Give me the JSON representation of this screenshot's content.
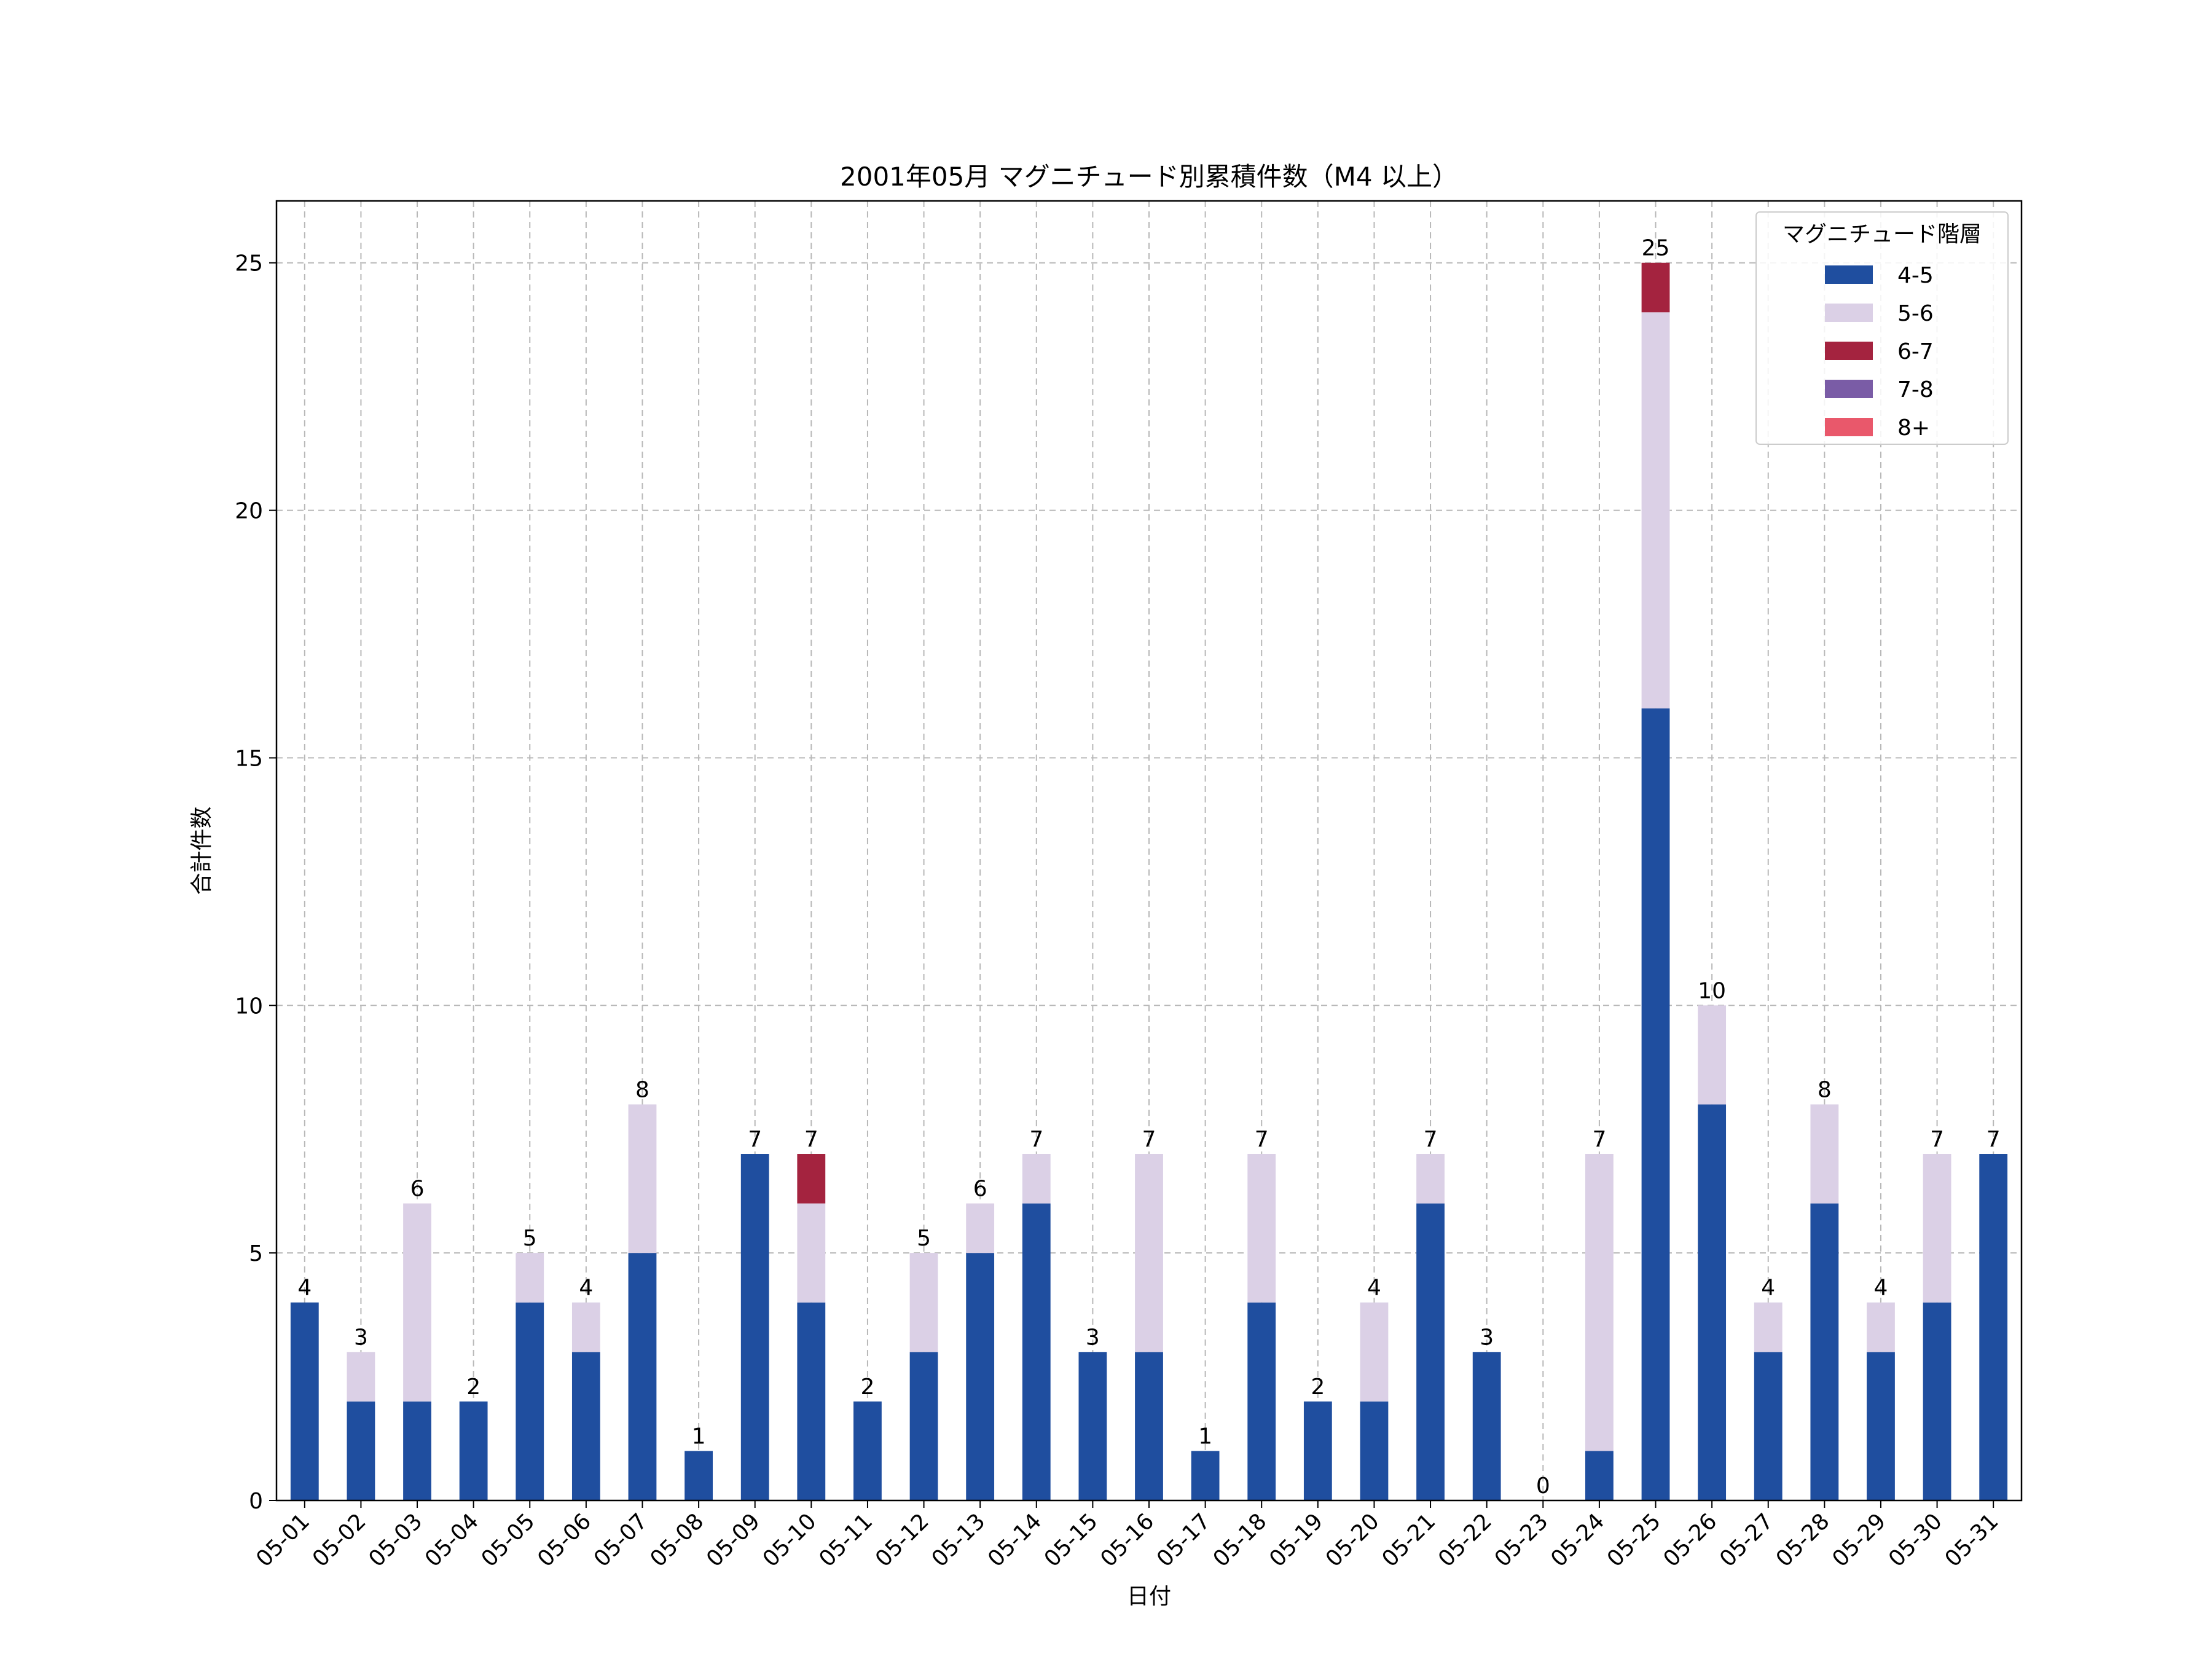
{
  "chart_data": {
    "type": "bar",
    "stacked": true,
    "title": "2001年05月 マグニチュード別累積件数（M4 以上）",
    "xlabel": "日付",
    "ylabel": "合計件数",
    "ylim": [
      0,
      26.25
    ],
    "yticks": [
      0,
      5,
      10,
      15,
      20,
      25
    ],
    "grid": true,
    "legend": {
      "title": "マグニチュード階層",
      "placement": "top-right"
    },
    "categories": [
      "05-01",
      "05-02",
      "05-03",
      "05-04",
      "05-05",
      "05-06",
      "05-07",
      "05-08",
      "05-09",
      "05-10",
      "05-11",
      "05-12",
      "05-13",
      "05-14",
      "05-15",
      "05-16",
      "05-17",
      "05-18",
      "05-19",
      "05-20",
      "05-21",
      "05-22",
      "05-23",
      "05-24",
      "05-25",
      "05-26",
      "05-27",
      "05-28",
      "05-29",
      "05-30",
      "05-31"
    ],
    "series": [
      {
        "name": "4-5",
        "color": "#1f4e9f",
        "values": [
          4,
          2,
          2,
          2,
          4,
          3,
          5,
          1,
          7,
          4,
          2,
          3,
          5,
          6,
          3,
          3,
          1,
          4,
          2,
          2,
          6,
          3,
          0,
          1,
          16,
          8,
          3,
          6,
          3,
          4,
          7
        ]
      },
      {
        "name": "5-6",
        "color": "#dbd0e6",
        "values": [
          0,
          1,
          4,
          0,
          1,
          1,
          3,
          0,
          0,
          2,
          0,
          2,
          1,
          1,
          0,
          4,
          0,
          3,
          0,
          2,
          1,
          0,
          0,
          6,
          8,
          2,
          1,
          2,
          1,
          3,
          0
        ]
      },
      {
        "name": "6-7",
        "color": "#a4233f",
        "values": [
          0,
          0,
          0,
          0,
          0,
          0,
          0,
          0,
          0,
          1,
          0,
          0,
          0,
          0,
          0,
          0,
          0,
          0,
          0,
          0,
          0,
          0,
          0,
          0,
          1,
          0,
          0,
          0,
          0,
          0,
          0
        ]
      },
      {
        "name": "7-8",
        "color": "#7a5ca6",
        "values": [
          0,
          0,
          0,
          0,
          0,
          0,
          0,
          0,
          0,
          0,
          0,
          0,
          0,
          0,
          0,
          0,
          0,
          0,
          0,
          0,
          0,
          0,
          0,
          0,
          0,
          0,
          0,
          0,
          0,
          0,
          0
        ]
      },
      {
        "name": "8+",
        "color": "#e9586b",
        "values": [
          0,
          0,
          0,
          0,
          0,
          0,
          0,
          0,
          0,
          0,
          0,
          0,
          0,
          0,
          0,
          0,
          0,
          0,
          0,
          0,
          0,
          0,
          0,
          0,
          0,
          0,
          0,
          0,
          0,
          0,
          0
        ]
      }
    ],
    "totals": [
      4,
      3,
      6,
      2,
      5,
      4,
      8,
      1,
      7,
      7,
      2,
      5,
      6,
      7,
      3,
      7,
      1,
      7,
      2,
      4,
      7,
      3,
      0,
      7,
      25,
      10,
      4,
      8,
      4,
      7,
      7
    ]
  }
}
